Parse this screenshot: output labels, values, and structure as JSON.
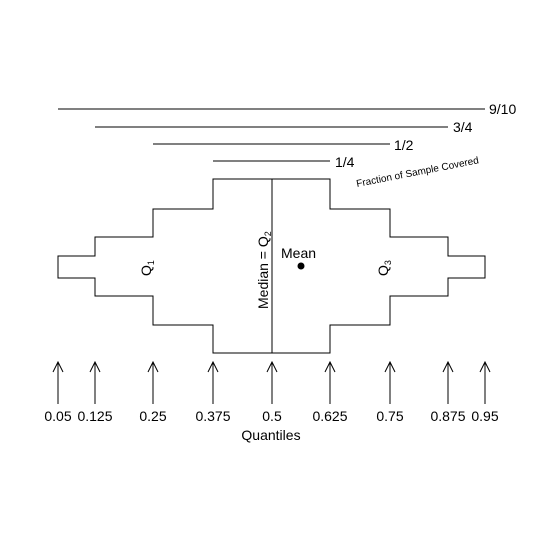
{
  "diagram": {
    "coverage_lines": [
      {
        "label": "9/10"
      },
      {
        "label": "3/4"
      },
      {
        "label": "1/2"
      },
      {
        "label": "1/4"
      }
    ],
    "coverage_title": "Fraction of Sample Covered",
    "box_labels": {
      "q1_main": "Q",
      "q1_sub": "1",
      "q3_main": "Q",
      "q3_sub": "3",
      "median_main": "Median = Q",
      "median_sub": "2",
      "mean": "Mean"
    },
    "quantiles": [
      "0.05",
      "0.125",
      "0.25",
      "0.375",
      "0.5",
      "0.625",
      "0.75",
      "0.875",
      "0.95"
    ],
    "axis_title": "Quantiles"
  }
}
